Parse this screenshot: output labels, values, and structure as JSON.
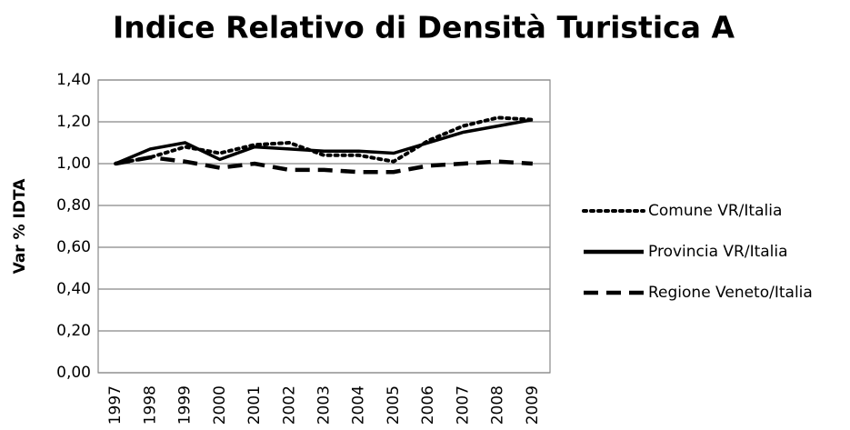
{
  "chart_data": {
    "type": "line",
    "title": "Indice Relativo di Densità Turistica A",
    "y_label": "Var % IDTA",
    "categories": [
      "1997",
      "1998",
      "1999",
      "2000",
      "2001",
      "2002",
      "2003",
      "2004",
      "2005",
      "2006",
      "2007",
      "2008",
      "2009"
    ],
    "series": [
      {
        "name": "Comune VR/Italia",
        "color": "#000000",
        "dash": "dotted",
        "values": [
          1.0,
          1.03,
          1.08,
          1.05,
          1.09,
          1.1,
          1.04,
          1.04,
          1.01,
          1.11,
          1.18,
          1.22,
          1.21
        ]
      },
      {
        "name": "Provincia VR/Italia",
        "color": "#000000",
        "dash": "solid",
        "values": [
          1.0,
          1.07,
          1.1,
          1.02,
          1.08,
          1.07,
          1.06,
          1.06,
          1.05,
          1.1,
          1.15,
          1.18,
          1.21
        ]
      },
      {
        "name": "Regione Veneto/Italia",
        "color": "#000000",
        "dash": "dashed",
        "values": [
          1.0,
          1.03,
          1.01,
          0.98,
          1.0,
          0.97,
          0.97,
          0.96,
          0.96,
          0.99,
          1.0,
          1.01,
          1.0
        ]
      }
    ],
    "ylim": [
      0,
      1.4
    ],
    "yticks": [
      {
        "value": 0,
        "label": "0,00"
      },
      {
        "value": 0.2,
        "label": "0,20"
      },
      {
        "value": 0.4,
        "label": "0,40"
      },
      {
        "value": 0.6,
        "label": "0,60"
      },
      {
        "value": 0.8,
        "label": "0,80"
      },
      {
        "value": 1,
        "label": "1,00"
      },
      {
        "value": 1.2,
        "label": "1,20"
      },
      {
        "value": 1.4,
        "label": "1,40"
      }
    ],
    "grid": true,
    "legend": "right"
  }
}
